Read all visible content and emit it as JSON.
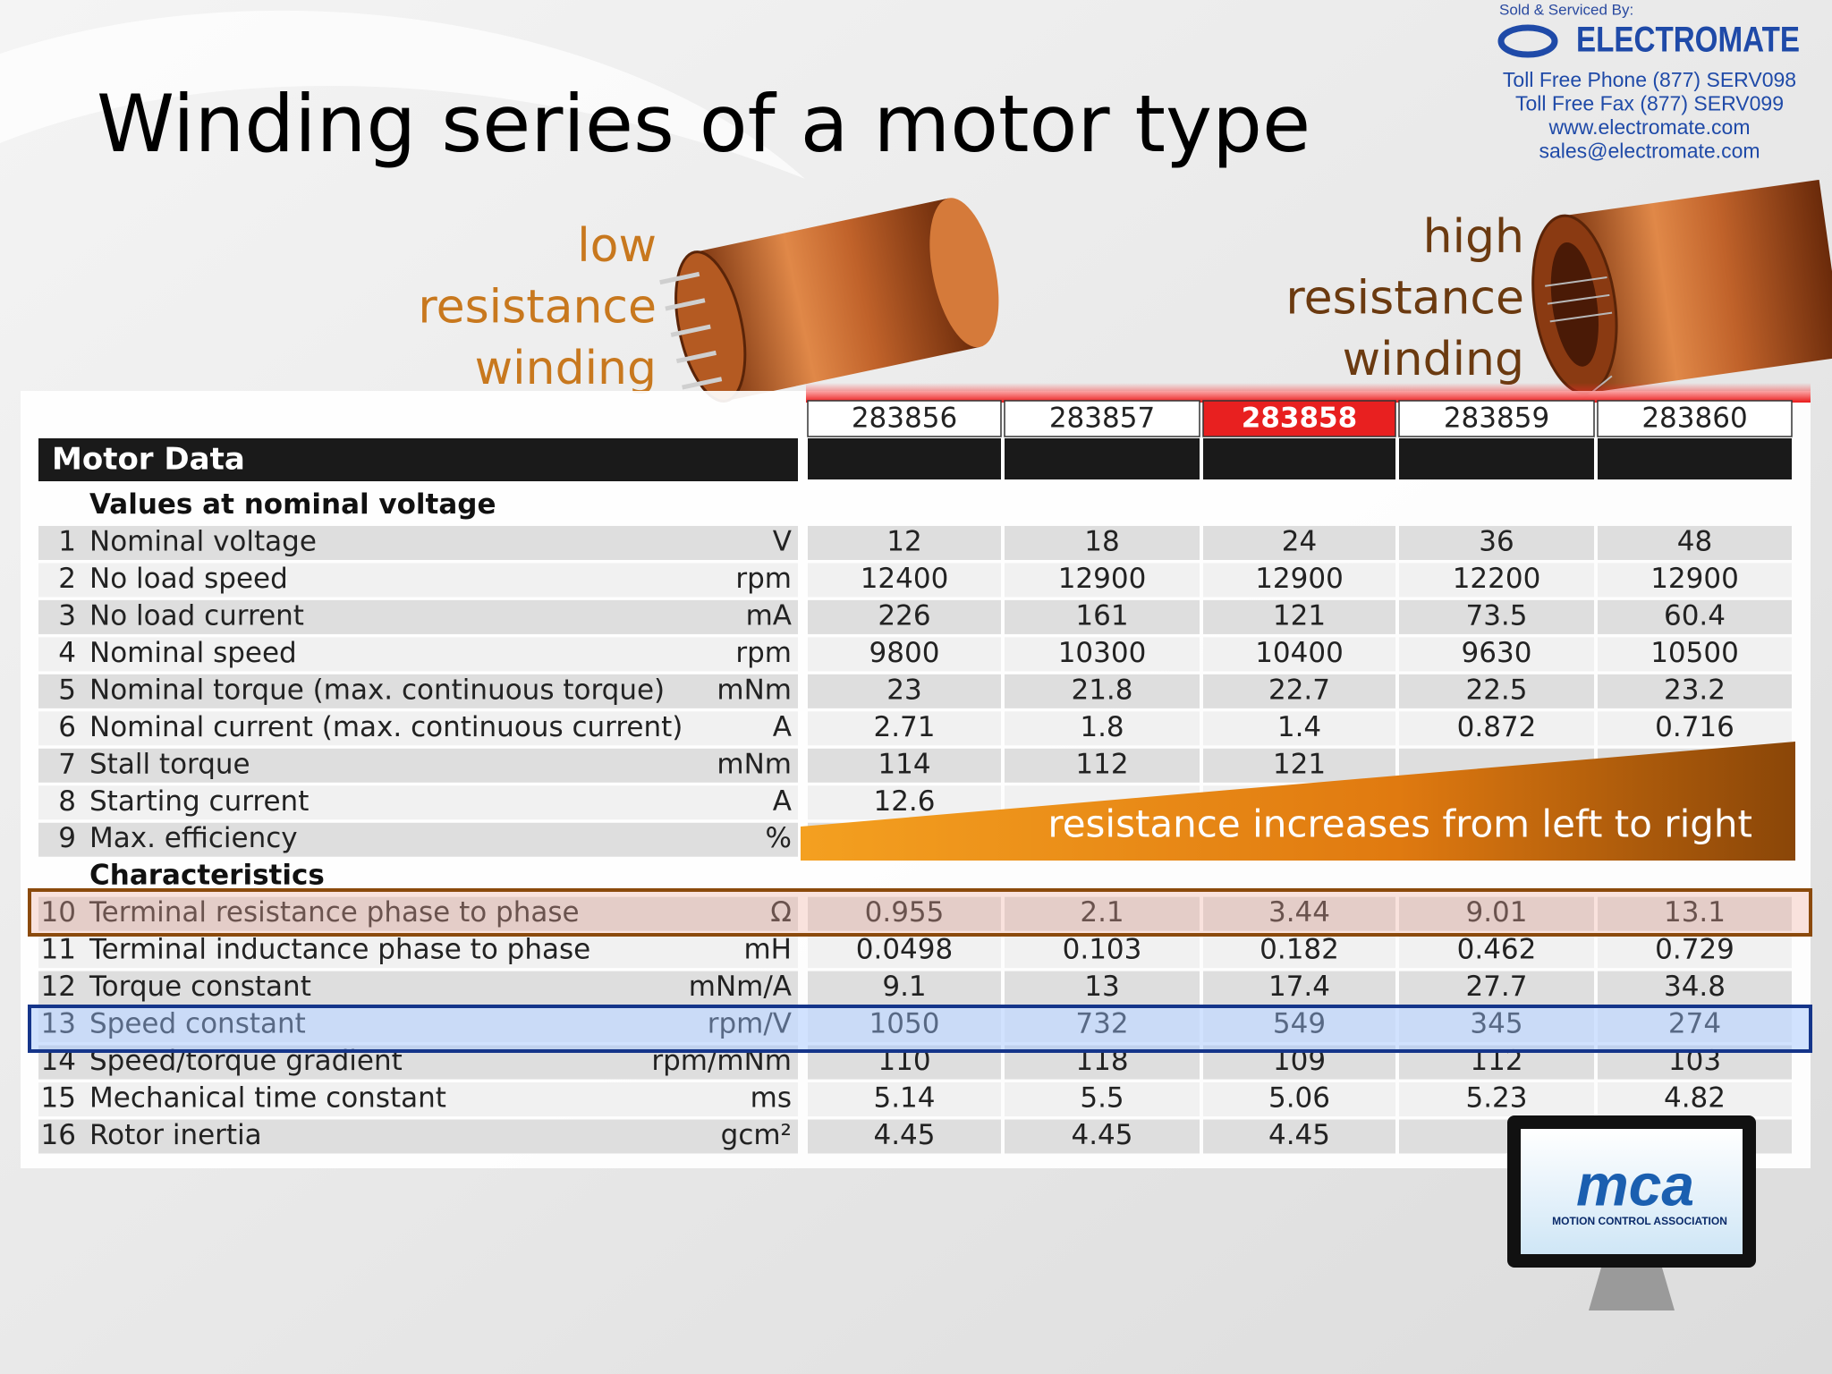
{
  "header": {
    "title": "Winding series of a motor type",
    "sponsor": {
      "label": "Sold & Serviced By:",
      "brand": "ELECTROMATE",
      "contacts": [
        "Toll Free Phone  (877) SERV098",
        "Toll Free Fax  (877) SERV099",
        "www.electromate.com",
        "sales@electromate.com"
      ]
    }
  },
  "annotations": {
    "low": [
      "low",
      "resistance",
      "winding"
    ],
    "high": [
      "high",
      "resistance",
      "winding"
    ],
    "banner": "resistance increases from left to right"
  },
  "table": {
    "title": "Motor Data",
    "columns": [
      "283856",
      "283857",
      "283858",
      "283859",
      "283860"
    ],
    "sections": [
      {
        "title": "Values at nominal voltage",
        "rows": [
          {
            "number": "1",
            "label": "Nominal voltage",
            "unit": "V",
            "values": [
              "12",
              "18",
              "24",
              "36",
              "48"
            ]
          },
          {
            "number": "2",
            "label": "No load speed",
            "unit": "rpm",
            "values": [
              "12400",
              "12900",
              "12900",
              "12200",
              "12900"
            ]
          },
          {
            "number": "3",
            "label": "No load current",
            "unit": "mA",
            "values": [
              "226",
              "161",
              "121",
              "73.5",
              "60.4"
            ]
          },
          {
            "number": "4",
            "label": "Nominal speed",
            "unit": "rpm",
            "values": [
              "9800",
              "10300",
              "10400",
              "9630",
              "10500"
            ]
          },
          {
            "number": "5",
            "label": "Nominal torque (max. continuous torque)",
            "unit": "mNm",
            "values": [
              "23",
              "21.8",
              "22.7",
              "22.5",
              "23.2"
            ]
          },
          {
            "number": "6",
            "label": "Nominal current (max. continuous current)",
            "unit": "A",
            "values": [
              "2.71",
              "1.8",
              "1.4",
              "0.872",
              "0.716"
            ]
          },
          {
            "number": "7",
            "label": "Stall torque",
            "unit": "mNm",
            "values": [
              "114",
              "112",
              "121",
              null,
              null
            ]
          },
          {
            "number": "8",
            "label": "Starting current",
            "unit": "A",
            "values": [
              "12.6",
              null,
              null,
              null,
              null
            ]
          },
          {
            "number": "9",
            "label": "Max. efficiency",
            "unit": "%",
            "values": [
              null,
              null,
              null,
              null,
              null
            ]
          }
        ]
      },
      {
        "title": "Characteristics",
        "rows": [
          {
            "number": "10",
            "label": "Terminal resistance phase to phase",
            "unit": "Ω",
            "values": [
              "0.955",
              "2.1",
              "3.44",
              "9.01",
              "13.1"
            ]
          },
          {
            "number": "11",
            "label": "Terminal inductance phase to phase",
            "unit": "mH",
            "values": [
              "0.0498",
              "0.103",
              "0.182",
              "0.462",
              "0.729"
            ]
          },
          {
            "number": "12",
            "label": "Torque constant",
            "unit": "mNm/A",
            "values": [
              "9.1",
              "13",
              "17.4",
              "27.7",
              "34.8"
            ]
          },
          {
            "number": "13",
            "label": "Speed constant",
            "unit": "rpm/V",
            "values": [
              "1050",
              "732",
              "549",
              "345",
              "274"
            ]
          },
          {
            "number": "14",
            "label": "Speed/torque gradient",
            "unit": "rpm/mNm",
            "values": [
              "110",
              "118",
              "109",
              "112",
              "103"
            ]
          },
          {
            "number": "15",
            "label": "Mechanical time constant",
            "unit": "ms",
            "values": [
              "5.14",
              "5.5",
              "5.06",
              "5.23",
              "4.82"
            ]
          },
          {
            "number": "16",
            "label": "Rotor inertia",
            "unit": "gcm²",
            "values": [
              "4.45",
              "4.45",
              "4.45",
              null,
              null
            ]
          }
        ]
      }
    ]
  },
  "footer_logo": {
    "brand": "mca",
    "name": "MOTION CONTROL ASSOCIATION"
  }
}
